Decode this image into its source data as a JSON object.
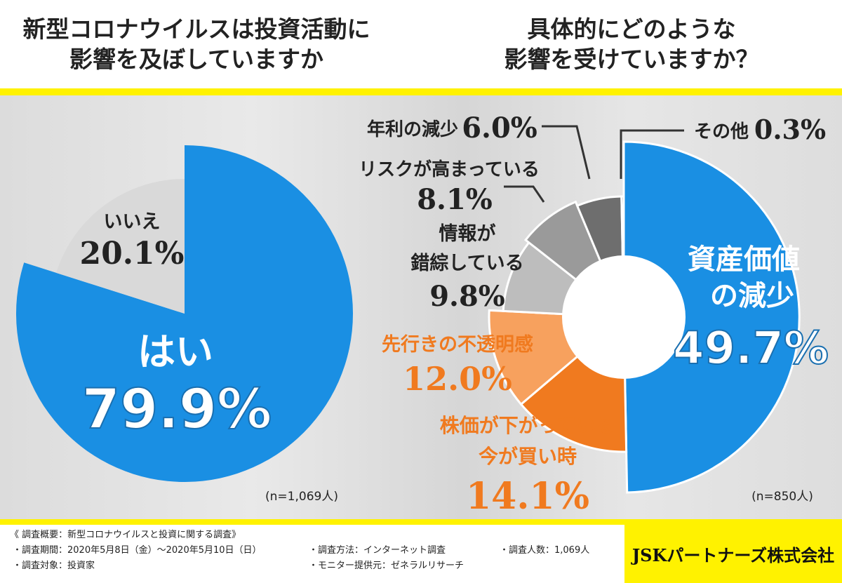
{
  "header": {
    "left_title_line1": "新型コロナウイルスは投資活動に",
    "left_title_line2": "影響を及ぼしていますか",
    "right_title_line1": "具体的にどのような",
    "right_title_line2": "影響を受けていますか？"
  },
  "chart_data": [
    {
      "type": "pie",
      "question": "新型コロナウイルスは投資活動に影響を及ぼしていますか",
      "slices": [
        {
          "label": "はい",
          "value": 79.9,
          "display": "79.9%",
          "color": "#1a8fe3"
        },
        {
          "label": "いいえ",
          "value": 20.1,
          "display": "20.1%",
          "color": "#d9d9d9"
        }
      ],
      "sample": "(n=1,069人)"
    },
    {
      "type": "pie",
      "question": "具体的にどのような影響を受けていますか？",
      "donut": true,
      "slices": [
        {
          "label": "資産価値の減少",
          "value": 49.7,
          "display": "49.7%",
          "color": "#1a8fe3"
        },
        {
          "label": "株価が下がっている今が買い時",
          "value": 14.1,
          "display": "14.1%",
          "color": "#f07a1f"
        },
        {
          "label": "先行きの不透明感",
          "value": 12.0,
          "display": "12.0%",
          "color": "#f7a15e"
        },
        {
          "label": "情報が錯綜している",
          "value": 9.8,
          "display": "9.8%",
          "color": "#bdbdbd"
        },
        {
          "label": "リスクが高まっている",
          "value": 8.1,
          "display": "8.1%",
          "color": "#9a9a9a"
        },
        {
          "label": "年利の減少",
          "value": 6.0,
          "display": "6.0%",
          "color": "#6e6e6e"
        },
        {
          "label": "その他",
          "value": 0.3,
          "display": "0.3%",
          "color": "#333333"
        }
      ],
      "sample": "(n=850人)"
    }
  ],
  "labels": {
    "hai": "はい",
    "hai_value": "79.9%",
    "iie": "いいえ",
    "iie_value": "20.1%",
    "asset_line1": "資産価値",
    "asset_line2": "の減少",
    "asset_value": "49.7%",
    "stock_line1": "株価が下がっている",
    "stock_line2": "今が買い時",
    "stock_value": "14.1%",
    "uncertain": "先行きの不透明感",
    "uncertain_value": "12.0%",
    "info_line1": "情報が",
    "info_line2": "錯綜している",
    "info_value": "9.8%",
    "risk": "リスクが高まっている",
    "risk_value": "8.1%",
    "interest": "年利の減少",
    "interest_value": "6.0%",
    "other": "その他",
    "other_value": "0.3%",
    "n_left": "(n=1,069人)",
    "n_right": "(n=850人)"
  },
  "footer": {
    "summary": "《 調査概要：新型コロナウイルスと投資に関する調査》",
    "period": "・調査期間：2020年5月8日（金）～2020年5月10日（日）",
    "target": "・調査対象：投資家",
    "method": "・調査方法：インターネット調査",
    "monitor": "・モニター提供元：ゼネラルリサーチ",
    "count": "・調査人数：1,069人",
    "company": "JSKパートナーズ株式会社"
  },
  "colors": {
    "accent_yellow": "#fff200",
    "blue": "#1a8fe3",
    "orange": "#f07a1f",
    "light_orange": "#f7a15e"
  }
}
